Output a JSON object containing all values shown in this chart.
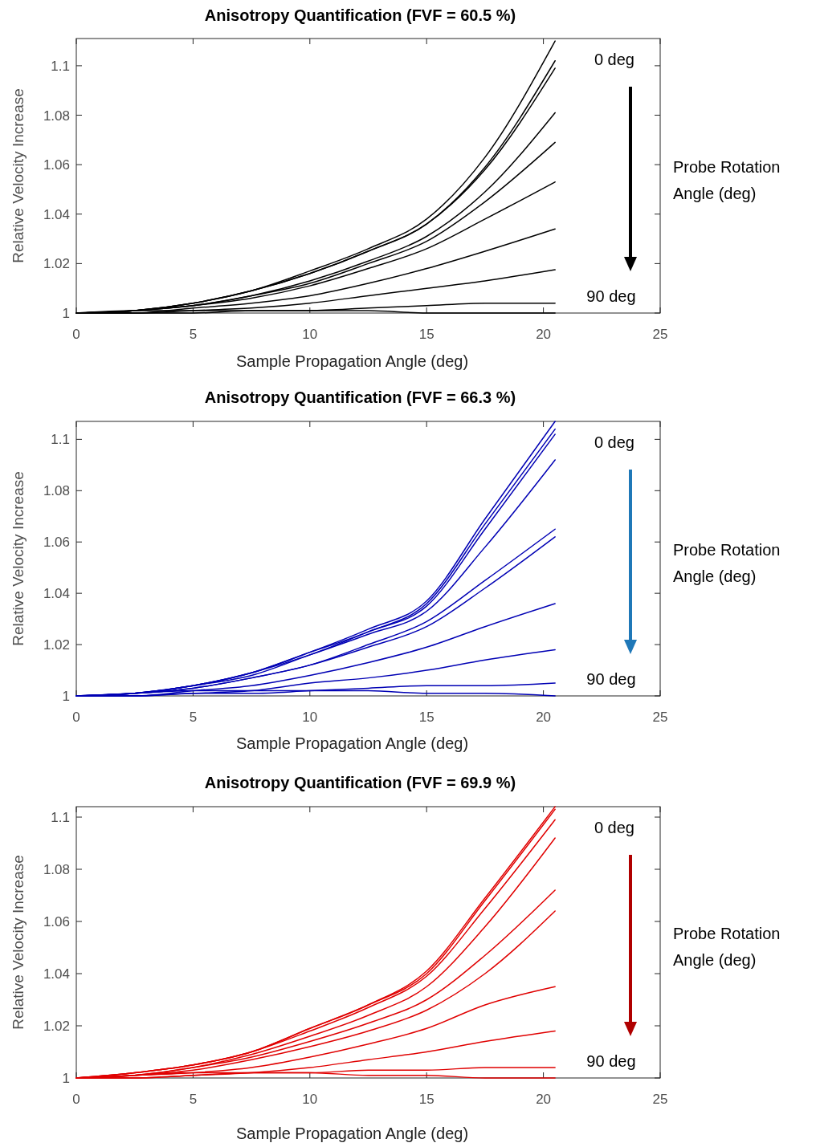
{
  "chart_data": [
    {
      "type": "line",
      "title": "Anisotropy Quantification (FVF = 60.5 %)",
      "xlabel": "Sample Propagation Angle (deg)",
      "ylabel": "Relative Velocity Increase",
      "x": [
        0,
        2.5,
        5,
        7.5,
        10,
        12.5,
        15,
        17.5,
        20.5
      ],
      "xlim": [
        0,
        25
      ],
      "xticks": [
        0,
        5,
        10,
        15,
        20,
        25
      ],
      "ylim": [
        1,
        1.111
      ],
      "yticks": [
        1,
        1.02,
        1.04,
        1.06,
        1.08,
        1.1
      ],
      "grid": false,
      "marker": "none",
      "line_style": "solid",
      "annotations": [
        "0 deg",
        "90 deg",
        "Probe Rotation\nAngle (deg)"
      ],
      "series": [
        {
          "color": "#000000",
          "values": [
            1,
            1.001,
            1.004,
            1.009,
            1.017,
            1.026,
            1.038,
            1.063,
            1.11
          ]
        },
        {
          "color": "#000000",
          "values": [
            1,
            1.001,
            1.004,
            1.009,
            1.016,
            1.025,
            1.036,
            1.059,
            1.102
          ]
        },
        {
          "color": "#000000",
          "values": [
            1,
            1.001,
            1.004,
            1.009,
            1.016,
            1.025,
            1.036,
            1.058,
            1.099
          ]
        },
        {
          "color": "#000000",
          "values": [
            1,
            1.001,
            1.003,
            1.007,
            1.013,
            1.021,
            1.031,
            1.049,
            1.081
          ]
        },
        {
          "color": "#000000",
          "values": [
            1,
            1.001,
            1.003,
            1.007,
            1.012,
            1.02,
            1.029,
            1.045,
            1.069
          ]
        },
        {
          "color": "#000000",
          "values": [
            1,
            1.001,
            1.003,
            1.006,
            1.011,
            1.018,
            1.026,
            1.038,
            1.053
          ]
        },
        {
          "color": "#000000",
          "values": [
            1,
            1,
            1.002,
            1.004,
            1.007,
            1.012,
            1.018,
            1.025,
            1.034
          ]
        },
        {
          "color": "#000000",
          "values": [
            1,
            1,
            1.001,
            1.002,
            1.004,
            1.007,
            1.01,
            1.013,
            1.0175
          ]
        },
        {
          "color": "#000000",
          "values": [
            1,
            1,
            1,
            1.001,
            1.001,
            1.002,
            1.003,
            1.004,
            1.004
          ]
        },
        {
          "color": "#000000",
          "values": [
            1,
            1.001,
            1.001,
            1.001,
            1.001,
            1.001,
            1,
            1,
            1
          ]
        }
      ]
    },
    {
      "type": "line",
      "title": "Anisotropy Quantification (FVF = 66.3 %)",
      "xlabel": "Sample Propagation Angle (deg)",
      "ylabel": "Relative Velocity Increase",
      "x": [
        0,
        2.5,
        5,
        7.5,
        10,
        12.5,
        15,
        17.5,
        20.5
      ],
      "xlim": [
        0,
        25
      ],
      "xticks": [
        0,
        5,
        10,
        15,
        20,
        25
      ],
      "ylim": [
        1,
        1.107
      ],
      "yticks": [
        1,
        1.02,
        1.04,
        1.06,
        1.08,
        1.1
      ],
      "grid": false,
      "marker": "none",
      "line_style": "solid",
      "annotations": [
        "0 deg",
        "90 deg",
        "Probe Rotation\nAngle (deg)"
      ],
      "series": [
        {
          "color": "#0000b4",
          "values": [
            1,
            1.001,
            1.004,
            1.009,
            1.017,
            1.026,
            1.037,
            1.069,
            1.107
          ]
        },
        {
          "color": "#0000b4",
          "values": [
            1,
            1.001,
            1.004,
            1.009,
            1.017,
            1.025,
            1.036,
            1.067,
            1.104
          ]
        },
        {
          "color": "#0000b4",
          "values": [
            1,
            1.001,
            1.004,
            1.009,
            1.016,
            1.025,
            1.035,
            1.065,
            1.102
          ]
        },
        {
          "color": "#0000b4",
          "values": [
            1,
            1.001,
            1.004,
            1.008,
            1.016,
            1.024,
            1.033,
            1.058,
            1.092
          ]
        },
        {
          "color": "#0000b4",
          "values": [
            1,
            1.001,
            1.003,
            1.007,
            1.012,
            1.02,
            1.029,
            1.045,
            1.065
          ]
        },
        {
          "color": "#0000b4",
          "values": [
            1,
            1.001,
            1.003,
            1.007,
            1.012,
            1.019,
            1.027,
            1.042,
            1.062
          ]
        },
        {
          "color": "#0000b4",
          "values": [
            1,
            1,
            1.002,
            1.004,
            1.008,
            1.013,
            1.019,
            1.027,
            1.036
          ]
        },
        {
          "color": "#0000b4",
          "values": [
            1,
            1,
            1.001,
            1.002,
            1.005,
            1.007,
            1.01,
            1.014,
            1.018
          ]
        },
        {
          "color": "#0000b4",
          "values": [
            1,
            1,
            1.001,
            1.001,
            1.002,
            1.003,
            1.004,
            1.004,
            1.005
          ]
        },
        {
          "color": "#0000b4",
          "values": [
            1,
            1.001,
            1.002,
            1.002,
            1.002,
            1.002,
            1.001,
            1.001,
            1
          ]
        }
      ]
    },
    {
      "type": "line",
      "title": "Anisotropy Quantification (FVF = 69.9 %)",
      "xlabel": "Sample Propagation Angle (deg)",
      "ylabel": "Relative Velocity Increase",
      "x": [
        0,
        2.5,
        5,
        7.5,
        10,
        12.5,
        15,
        17.5,
        20.5
      ],
      "xlim": [
        0,
        25
      ],
      "xticks": [
        0,
        5,
        10,
        15,
        20,
        25
      ],
      "ylim": [
        1,
        1.104
      ],
      "yticks": [
        1,
        1.02,
        1.04,
        1.06,
        1.08,
        1.1
      ],
      "grid": false,
      "marker": "none",
      "line_style": "solid",
      "annotations": [
        "0 deg",
        "90 deg",
        "Probe Rotation\nAngle (deg)"
      ],
      "series": [
        {
          "color": "#e00000",
          "values": [
            1,
            1.002,
            1.005,
            1.01,
            1.019,
            1.028,
            1.041,
            1.069,
            1.104
          ]
        },
        {
          "color": "#e00000",
          "values": [
            1,
            1.002,
            1.005,
            1.01,
            1.019,
            1.028,
            1.04,
            1.068,
            1.103
          ]
        },
        {
          "color": "#e00000",
          "values": [
            1,
            1.002,
            1.005,
            1.01,
            1.018,
            1.027,
            1.039,
            1.065,
            1.099
          ]
        },
        {
          "color": "#e00000",
          "values": [
            1,
            1.001,
            1.004,
            1.009,
            1.016,
            1.024,
            1.035,
            1.058,
            1.092
          ]
        },
        {
          "color": "#e00000",
          "values": [
            1,
            1.001,
            1.004,
            1.008,
            1.014,
            1.021,
            1.03,
            1.047,
            1.072
          ]
        },
        {
          "color": "#e00000",
          "values": [
            1,
            1.001,
            1.003,
            1.007,
            1.012,
            1.018,
            1.026,
            1.04,
            1.064
          ]
        },
        {
          "color": "#e00000",
          "values": [
            1,
            1.001,
            1.002,
            1.004,
            1.008,
            1.013,
            1.019,
            1.028,
            1.035
          ]
        },
        {
          "color": "#e00000",
          "values": [
            1,
            1,
            1.001,
            1.002,
            1.004,
            1.007,
            1.01,
            1.014,
            1.018
          ]
        },
        {
          "color": "#e00000",
          "values": [
            1,
            1,
            1.001,
            1.002,
            1.002,
            1.003,
            1.003,
            1.004,
            1.004
          ]
        },
        {
          "color": "#e00000",
          "values": [
            1,
            1.001,
            1.002,
            1.002,
            1.002,
            1.001,
            1.001,
            1,
            1
          ]
        }
      ]
    }
  ]
}
